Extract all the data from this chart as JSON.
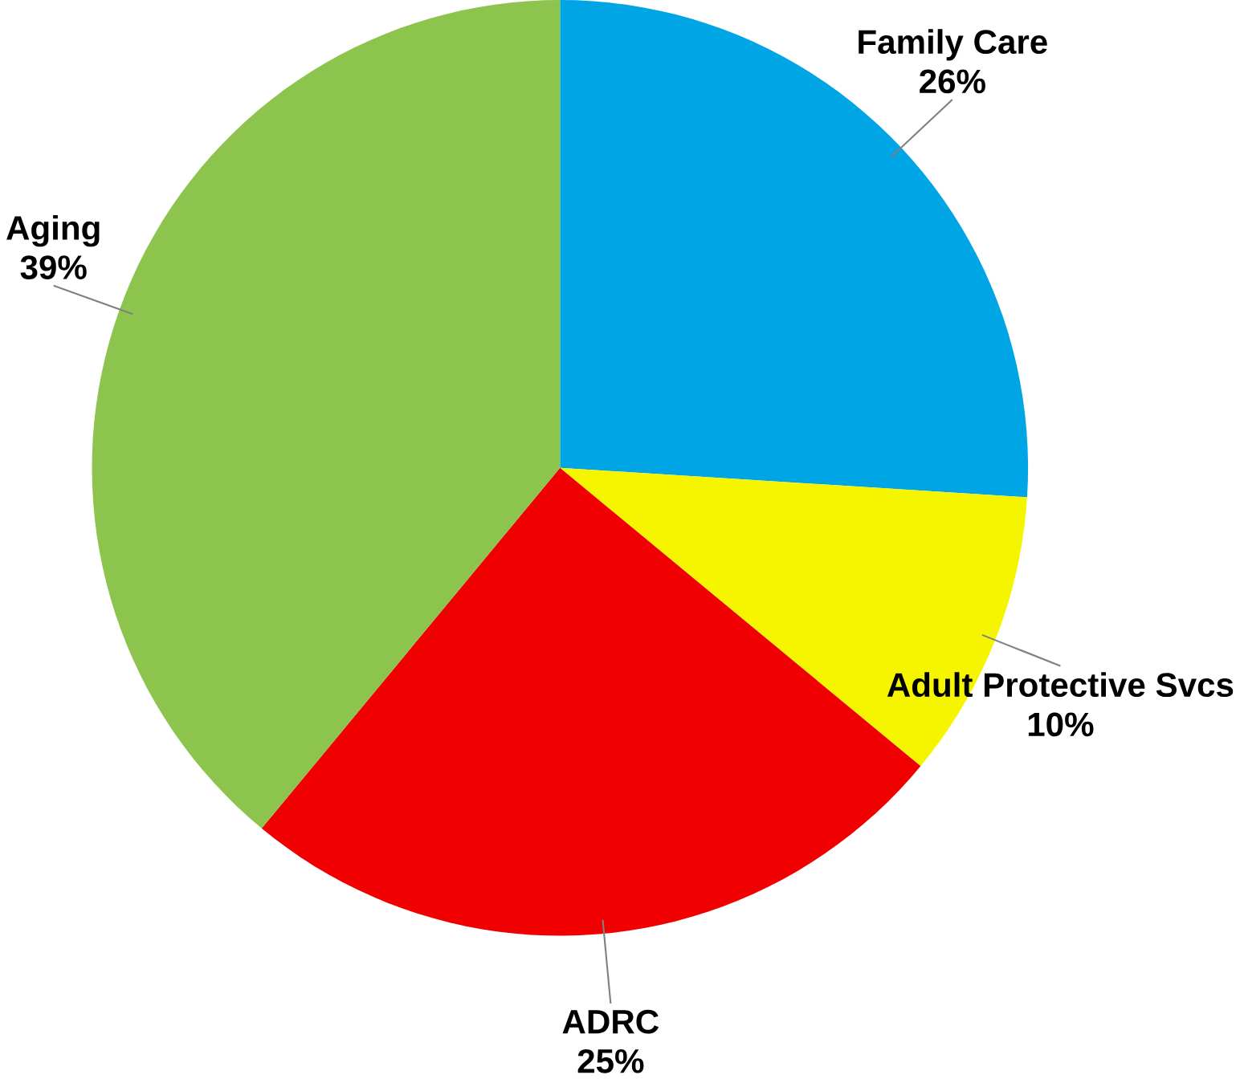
{
  "chart_data": {
    "type": "pie",
    "categories": [
      "Family Care",
      "Adult Protective Svcs",
      "ADRC",
      "Aging"
    ],
    "values": [
      26,
      10,
      25,
      39
    ],
    "value_labels": [
      "26%",
      "10%",
      "25%",
      "39%"
    ],
    "colors": [
      "#00a5e6",
      "#f5f500",
      "#f00000",
      "#8cc44e"
    ]
  }
}
